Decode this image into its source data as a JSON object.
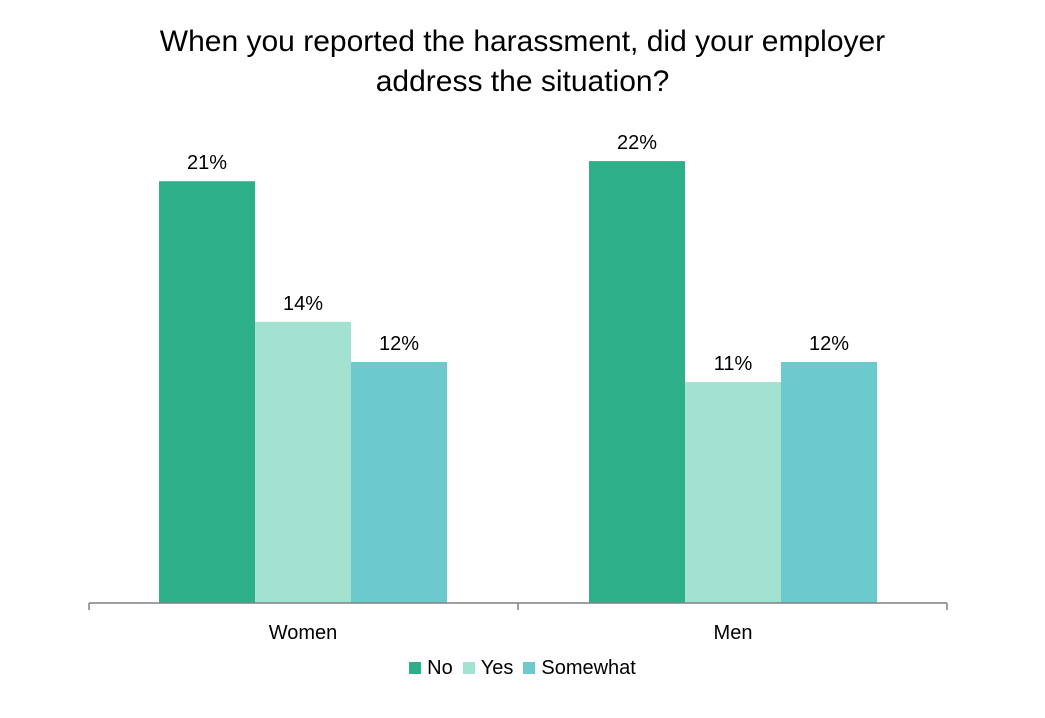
{
  "chart_data": {
    "type": "bar",
    "title_lines": [
      "When you reported the harassment, did your employer",
      "address the situation?"
    ],
    "categories": [
      "Women",
      "Men"
    ],
    "series": [
      {
        "name": "No",
        "color": "#2db089",
        "values": [
          21,
          22
        ],
        "labels": [
          "21%",
          "22%"
        ]
      },
      {
        "name": "Yes",
        "color": "#a3e2d1",
        "values": [
          14,
          11
        ],
        "labels": [
          "14%",
          "11%"
        ]
      },
      {
        "name": "Somewhat",
        "color": "#6ccacc",
        "values": [
          12,
          12
        ],
        "labels": [
          "12%",
          "12%"
        ]
      }
    ],
    "ylim": [
      0,
      23.4
    ],
    "yunit": "%",
    "grid": false,
    "legend_position": "bottom"
  }
}
